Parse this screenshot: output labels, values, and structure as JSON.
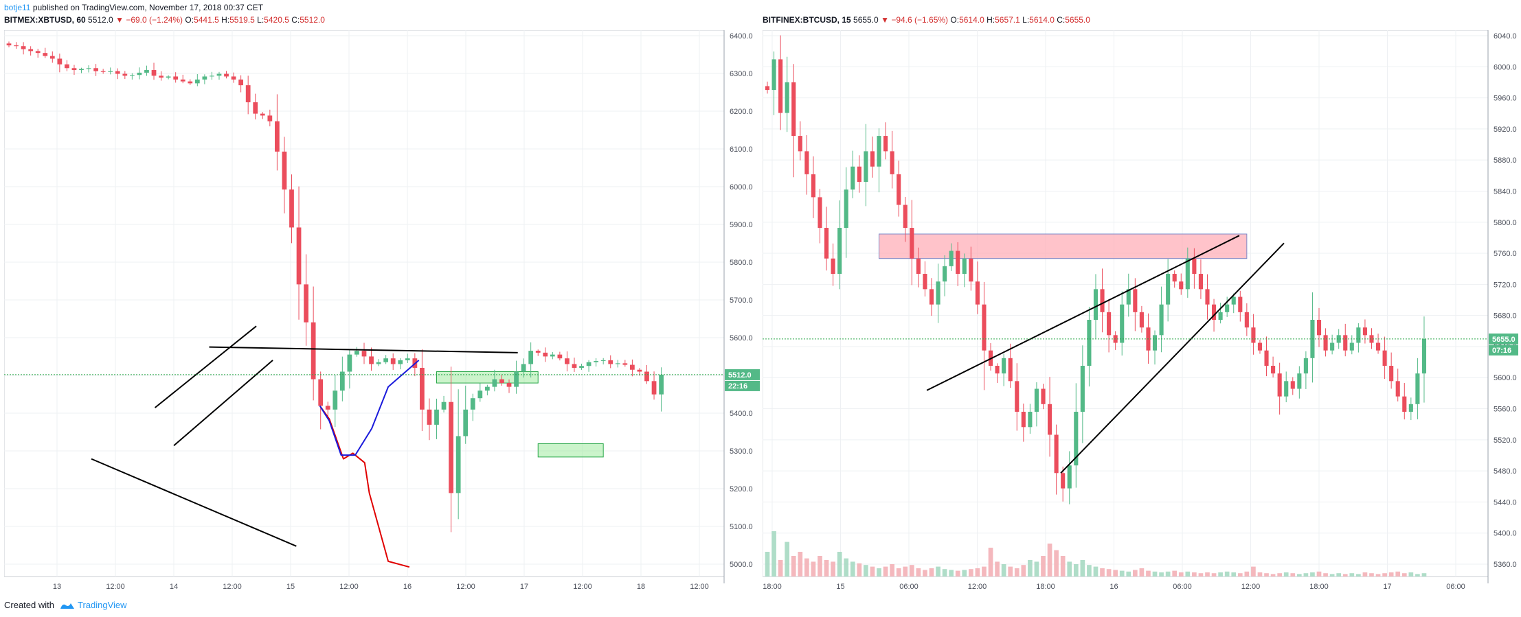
{
  "header": {
    "author": "botje11",
    "published_text": " published on TradingView.com, November 17, 2018 00:37 CET"
  },
  "left": {
    "symbol": "BITMEX:XBTUSD, 60",
    "last": "5512.0",
    "change": "−69.0 (−1.24%)",
    "open": "5441.5",
    "high": "5519.5",
    "low": "5420.5",
    "close": "5512.0",
    "price_badge": "5512.0",
    "countdown_badge": "22:16"
  },
  "right": {
    "symbol": "BITFINEX:BTCUSD, 15",
    "last": "5655.0",
    "change": "−94.6 (−1.65%)",
    "open": "5614.0",
    "high": "5657.1",
    "low": "5614.0",
    "close": "5655.0",
    "price_badge": "5655.0",
    "countdown_badge": "07:16"
  },
  "ohlc_keys": {
    "open": "O:",
    "high": "H:",
    "low": "L:",
    "close": "C:"
  },
  "footer": {
    "created_with": "Created with",
    "brand": "TradingView"
  },
  "chart_data": [
    {
      "type": "candlestick",
      "title": "BITMEX:XBTUSD, 60",
      "ylim": [
        4980,
        6420
      ],
      "y_ticks": [
        "6400.0",
        "6300.0",
        "6200.0",
        "6100.0",
        "6000.0",
        "5900.0",
        "5800.0",
        "5700.0",
        "5600.0",
        "5500.0",
        "5400.0",
        "5300.0",
        "5200.0",
        "5100.0",
        "5000.0"
      ],
      "x_ticks": [
        "13",
        "12:00",
        "14",
        "12:00",
        "15",
        "12:00",
        "16",
        "12:00",
        "17",
        "12:00",
        "18",
        "12:00"
      ],
      "last_price": 5512.0,
      "colors": {
        "up": "#53b987",
        "down": "#eb4d5c",
        "projection_red": "#e00000",
        "projection_blue": "#1a1adb"
      },
      "series": [
        {
          "name": "price",
          "close_path": [
            6380,
            6378,
            6370,
            6365,
            6360,
            6352,
            6345,
            6330,
            6320,
            6315,
            6318,
            6320,
            6312,
            6310,
            6312,
            6305,
            6300,
            6302,
            6308,
            6315,
            6300,
            6295,
            6298,
            6290,
            6285,
            6280,
            6290,
            6298,
            6300,
            6305,
            6298,
            6290,
            6275,
            6230,
            6200,
            6195,
            6180,
            6100,
            6000,
            5900,
            5750,
            5650,
            5500,
            5430,
            5420,
            5470,
            5520,
            5565,
            5575,
            5560,
            5540,
            5545,
            5555,
            5540,
            5550,
            5555,
            5530,
            5420,
            5380,
            5420,
            5440,
            5200,
            5350,
            5420,
            5450,
            5470,
            5480,
            5500,
            5490,
            5480,
            5520,
            5540,
            5575,
            5570,
            5560,
            5565,
            5555,
            5540,
            5530,
            5535,
            5545,
            5548,
            5550,
            5540,
            5542,
            5538,
            5525,
            5520,
            5495,
            5460,
            5512
          ]
        }
      ],
      "annotations": {
        "zones": [
          [
            5490,
            5520
          ],
          [
            5295,
            5330
          ]
        ],
        "trendlines": [
          [
            [
              8.5,
              5585
            ],
            [
              21.6,
              5570
            ]
          ],
          [
            [
              6.2,
              5425
            ],
            [
              10.5,
              5640
            ]
          ],
          [
            [
              7,
              5325
            ],
            [
              11.2,
              5550
            ]
          ],
          [
            [
              3.5,
              5290
            ],
            [
              12.2,
              5060
            ]
          ]
        ],
        "projection_red": [
          [
            13.2,
            5430
          ],
          [
            13.6,
            5395
          ],
          [
            14.2,
            5290
          ],
          [
            14.6,
            5305
          ],
          [
            15.1,
            5280
          ],
          [
            15.3,
            5200
          ],
          [
            16.1,
            5020
          ],
          [
            17,
            5005
          ]
        ],
        "projection_blue": [
          [
            13.2,
            5430
          ],
          [
            13.6,
            5390
          ],
          [
            14.1,
            5300
          ],
          [
            14.7,
            5300
          ],
          [
            15.4,
            5370
          ],
          [
            16.1,
            5480
          ],
          [
            17.4,
            5550
          ]
        ]
      }
    },
    {
      "type": "candlestick",
      "title": "BITFINEX:BTCUSD, 15",
      "ylim": [
        5345,
        6058
      ],
      "y_ticks": [
        "6040.0",
        "6000.0",
        "5960.0",
        "5920.0",
        "5880.0",
        "5840.0",
        "5800.0",
        "5760.0",
        "5720.0",
        "5680.0",
        "5640.0",
        "5600.0",
        "5560.0",
        "5520.0",
        "5480.0",
        "5440.0",
        "5400.0",
        "5360.0"
      ],
      "x_ticks": [
        "18:00",
        "15",
        "06:00",
        "12:00",
        "18:00",
        "16",
        "06:00",
        "12:00",
        "18:00",
        "17",
        "06:00"
      ],
      "last_price": 5655.0,
      "colors": {
        "up": "#53b987",
        "down": "#eb4d5c",
        "zone": "#ffc0c8"
      },
      "series": [
        {
          "name": "price",
          "close_path": [
            5980,
            6020,
            5950,
            5990,
            5920,
            5900,
            5870,
            5840,
            5800,
            5760,
            5740,
            5800,
            5850,
            5880,
            5860,
            5900,
            5880,
            5920,
            5900,
            5870,
            5830,
            5800,
            5760,
            5740,
            5720,
            5700,
            5730,
            5750,
            5770,
            5740,
            5760,
            5730,
            5700,
            5640,
            5620,
            5610,
            5630,
            5600,
            5560,
            5540,
            5560,
            5590,
            5570,
            5530,
            5480,
            5460,
            5490,
            5560,
            5620,
            5680,
            5720,
            5690,
            5660,
            5650,
            5700,
            5720,
            5690,
            5670,
            5640,
            5660,
            5700,
            5740,
            5730,
            5720,
            5760,
            5740,
            5720,
            5700,
            5680,
            5690,
            5700,
            5710,
            5690,
            5670,
            5650,
            5640,
            5620,
            5610,
            5580,
            5600,
            5590,
            5610,
            5630,
            5680,
            5660,
            5640,
            5650,
            5660,
            5640,
            5650,
            5670,
            5660,
            5650,
            5640,
            5620,
            5600,
            5580,
            5560,
            5570,
            5610,
            5655
          ]
        },
        {
          "name": "volume",
          "values": [
            0.3,
            0.55,
            0.2,
            0.42,
            0.25,
            0.3,
            0.22,
            0.18,
            0.25,
            0.2,
            0.18,
            0.3,
            0.22,
            0.18,
            0.16,
            0.14,
            0.12,
            0.1,
            0.12,
            0.15,
            0.1,
            0.12,
            0.14,
            0.1,
            0.08,
            0.1,
            0.12,
            0.09,
            0.08,
            0.07,
            0.08,
            0.09,
            0.1,
            0.12,
            0.35,
            0.18,
            0.15,
            0.12,
            0.1,
            0.14,
            0.2,
            0.18,
            0.25,
            0.4,
            0.32,
            0.25,
            0.18,
            0.15,
            0.2,
            0.14,
            0.12,
            0.1,
            0.09,
            0.08,
            0.07,
            0.06,
            0.08,
            0.1,
            0.07,
            0.06,
            0.05,
            0.06,
            0.07,
            0.05,
            0.06,
            0.05,
            0.04,
            0.05,
            0.04,
            0.05,
            0.06,
            0.05,
            0.04,
            0.06,
            0.12,
            0.05,
            0.04,
            0.03,
            0.04,
            0.05,
            0.04,
            0.03,
            0.04,
            0.05,
            0.06,
            0.04,
            0.03,
            0.04,
            0.03,
            0.04,
            0.03,
            0.05,
            0.04,
            0.03,
            0.04,
            0.05,
            0.06,
            0.04,
            0.05,
            0.03,
            0.04
          ]
        }
      ],
      "annotations": {
        "zones": [
          [
            5760,
            5792
          ]
        ],
        "trendlines": [
          [
            [
              12.5,
              5588
            ],
            [
              37,
              5790
            ]
          ],
          [
            [
              23,
              5480
            ],
            [
              40.5,
              5780
            ]
          ]
        ]
      }
    }
  ]
}
